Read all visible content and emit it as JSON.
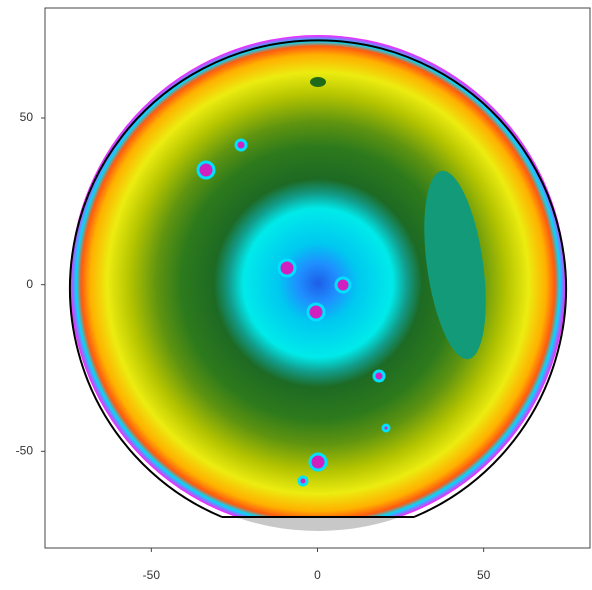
{
  "chart_data": {
    "type": "contour",
    "xlim": [
      -82,
      82
    ],
    "ylim": [
      -79,
      83
    ],
    "xticks": [
      -50,
      0,
      50
    ],
    "yticks": [
      -50,
      0,
      50
    ]
  }
}
